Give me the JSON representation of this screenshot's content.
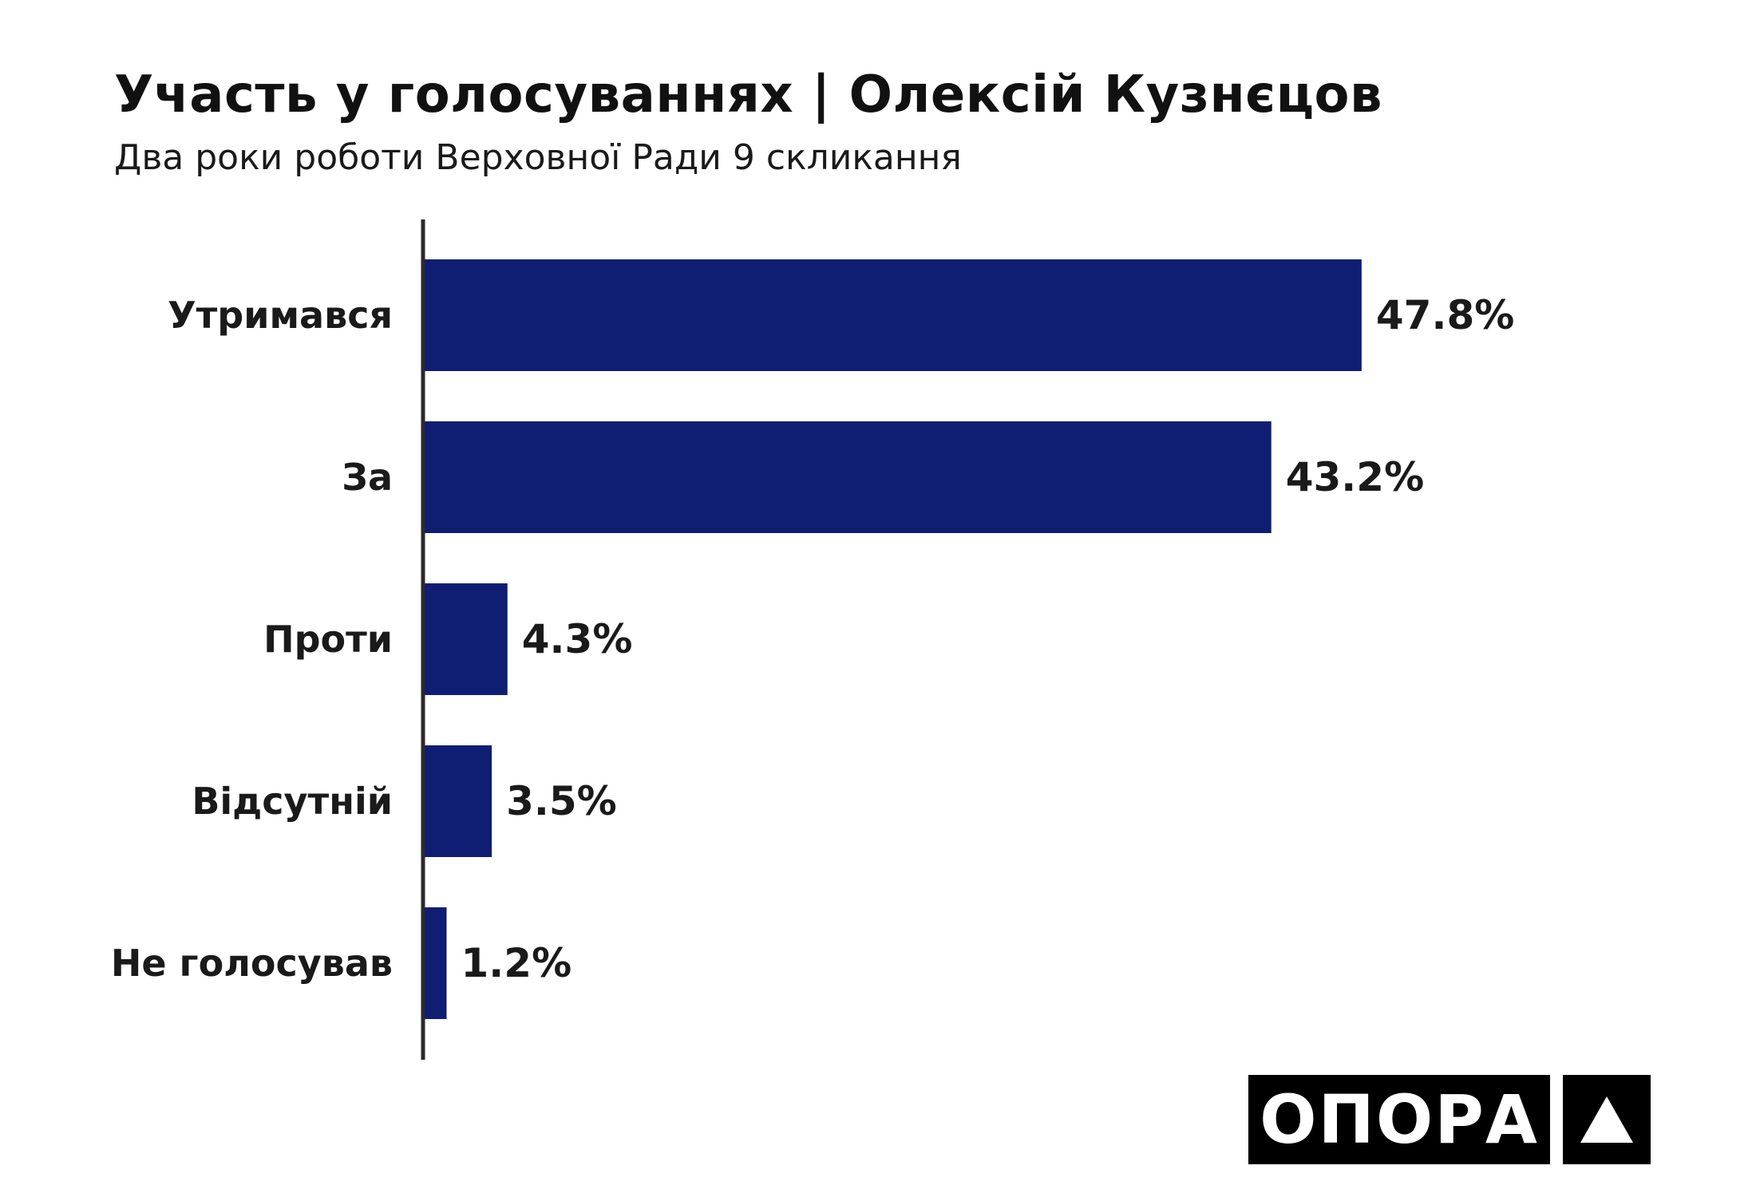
{
  "title": "Участь у голосуваннях | Олексій Кузнєцов",
  "subtitle": "Два роки роботи Верховної Ради 9 скликання",
  "colors": {
    "bar": "#0f1e73",
    "axis": "#2a2a2a",
    "text": "#1a1a1a"
  },
  "logo": {
    "text": "ОПОРА",
    "mark_icon": "triangle-icon"
  },
  "chart_data": {
    "type": "bar",
    "orientation": "horizontal",
    "categories": [
      "Утримався",
      "За",
      "Проти",
      "Відсутній",
      "Не голосував"
    ],
    "values": [
      47.8,
      43.2,
      4.3,
      3.5,
      1.2
    ],
    "value_labels": [
      "47.8%",
      "43.2%",
      "4.3%",
      "3.5%",
      "1.2%"
    ],
    "xlim": [
      0,
      50
    ],
    "grid": false,
    "legend": "none"
  }
}
